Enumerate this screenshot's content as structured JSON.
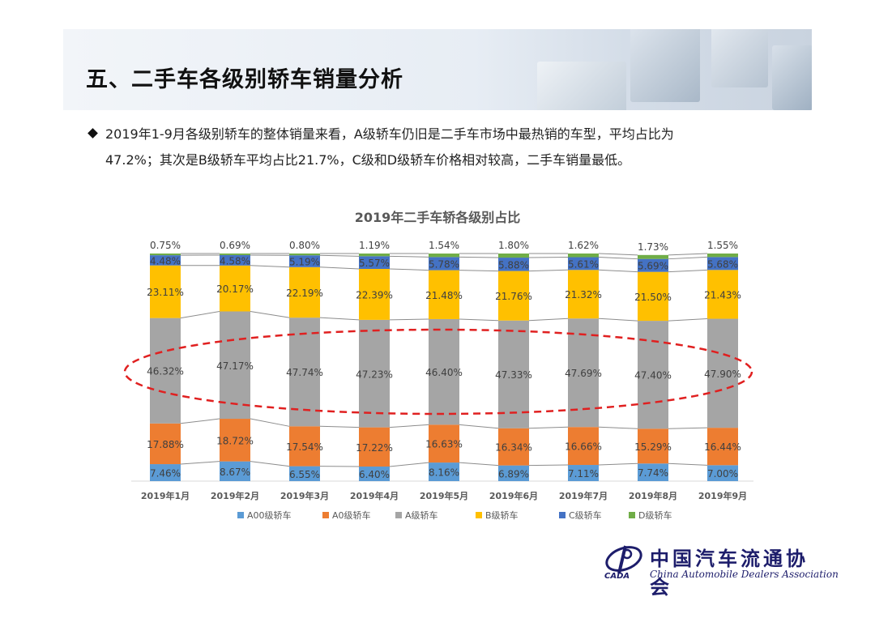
{
  "header": {
    "title": "五、二手车各级别轿车销量分析"
  },
  "bullet": {
    "line1": "2019年1-9月各级别轿车的整体销量来看，A级轿车仍旧是二手车市场中最热销的车型，平均占比为",
    "line2": "47.2%；其次是B级轿车平均占比21.7%，C级和D级轿车价格相对较高，二手车销量最低。"
  },
  "chart_data": {
    "type": "bar",
    "stacked": true,
    "title": "2019年二手车轿各级别占比",
    "categories": [
      "2019年1月",
      "2019年2月",
      "2019年3月",
      "2019年4月",
      "2019年5月",
      "2019年6月",
      "2019年7月",
      "2019年8月",
      "2019年9月"
    ],
    "series": [
      {
        "name": "A00级轿车",
        "color": "#5b9bd5",
        "values": [
          7.46,
          8.67,
          6.55,
          6.4,
          8.16,
          6.89,
          7.11,
          7.74,
          7.0
        ],
        "labels": [
          "7.46%",
          "8.67%",
          "6.55%",
          "6.40%",
          "8.16%",
          "6.89%",
          "7.11%",
          "7.74%",
          "7.00%"
        ]
      },
      {
        "name": "A0级轿车",
        "color": "#ed7d31",
        "values": [
          17.88,
          18.72,
          17.54,
          17.22,
          16.63,
          16.34,
          16.66,
          15.29,
          16.44
        ],
        "labels": [
          "17.88%",
          "18.72%",
          "17.54%",
          "17.22%",
          "16.63%",
          "16.34%",
          "16.66%",
          "15.29%",
          "16.44%"
        ]
      },
      {
        "name": "A级轿车",
        "color": "#a5a5a5",
        "values": [
          46.32,
          47.17,
          47.74,
          47.23,
          46.4,
          47.33,
          47.69,
          47.4,
          47.9
        ],
        "labels": [
          "46.32%",
          "47.17%",
          "47.74%",
          "47.23%",
          "46.40%",
          "47.33%",
          "47.69%",
          "47.40%",
          "47.90%"
        ]
      },
      {
        "name": "B级轿车",
        "color": "#ffc000",
        "values": [
          23.11,
          20.17,
          22.19,
          22.39,
          21.48,
          21.76,
          21.32,
          21.5,
          21.43
        ],
        "labels": [
          "23.11%",
          "20.17%",
          "22.19%",
          "22.39%",
          "21.48%",
          "21.76%",
          "21.32%",
          "21.50%",
          "21.43%"
        ]
      },
      {
        "name": "C级轿车",
        "color": "#4472c4",
        "values": [
          4.48,
          4.58,
          5.19,
          5.57,
          5.78,
          5.88,
          5.61,
          5.69,
          5.68
        ],
        "labels": [
          "4.48%",
          "4.58%",
          "5.19%",
          "5.57%",
          "5.78%",
          "5.88%",
          "5.61%",
          "5.69%",
          "5.68%"
        ]
      },
      {
        "name": "D级轿车",
        "color": "#70ad47",
        "values": [
          0.75,
          0.69,
          0.8,
          1.19,
          1.54,
          1.8,
          1.62,
          1.73,
          1.55
        ],
        "labels": [
          "0.75%",
          "0.69%",
          "0.80%",
          "1.19%",
          "1.54%",
          "1.80%",
          "1.62%",
          "1.73%",
          "1.55%"
        ]
      }
    ],
    "ylim": [
      0,
      100
    ],
    "legend": "bottom",
    "annotation": "dashed ellipse highlighting A级轿车 segment"
  },
  "logo": {
    "name_cn": "中国汽车流通协会",
    "name_en": "China Automobile Dealers Association",
    "abbr": "CADA"
  }
}
